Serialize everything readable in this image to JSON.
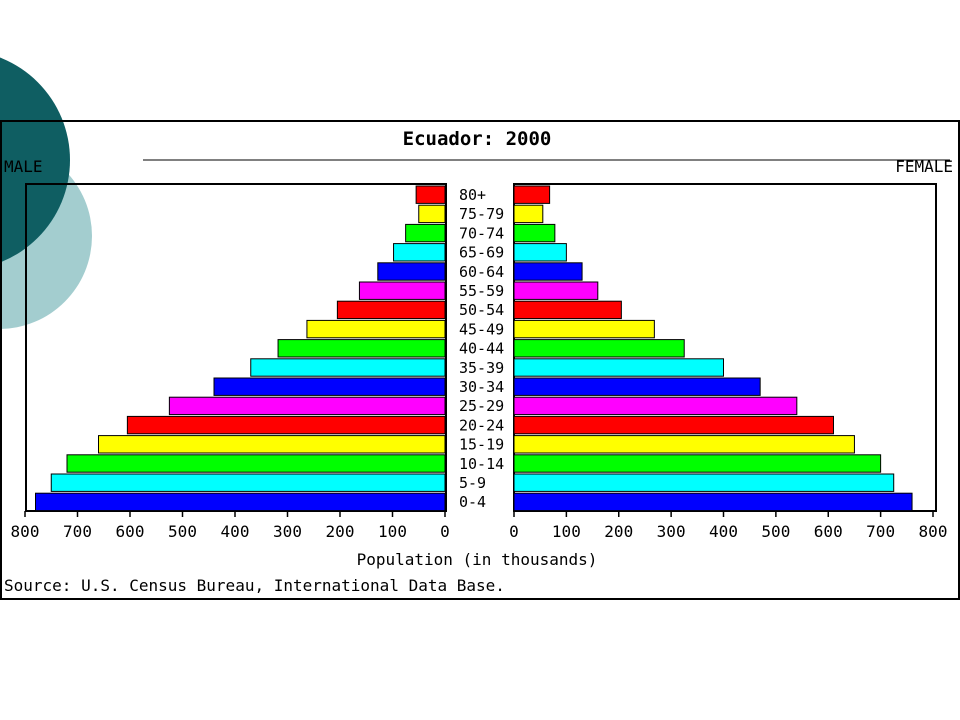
{
  "chart_data": {
    "type": "bar",
    "title": "Ecuador: 2000",
    "left_label": "MALE",
    "right_label": "FEMALE",
    "xlabel": "Population (in thousands)",
    "source": "Source: U.S. Census Bureau, International Data Base.",
    "xlim": [
      0,
      800
    ],
    "x_ticks": [
      "800",
      "700",
      "600",
      "500",
      "400",
      "300",
      "200",
      "100",
      "0"
    ],
    "x_ticks_right": [
      "0",
      "100",
      "200",
      "300",
      "400",
      "500",
      "600",
      "700",
      "800"
    ],
    "categories": [
      "80+",
      "75-79",
      "70-74",
      "65-69",
      "60-64",
      "55-59",
      "50-54",
      "45-49",
      "40-44",
      "35-39",
      "30-34",
      "25-29",
      "20-24",
      "15-19",
      "10-14",
      "5-9",
      "0-4"
    ],
    "series": [
      {
        "name": "MALE",
        "values": [
          55,
          50,
          75,
          98,
          128,
          163,
          205,
          263,
          318,
          370,
          440,
          525,
          605,
          660,
          720,
          750,
          780
        ]
      },
      {
        "name": "FEMALE",
        "values": [
          68,
          55,
          78,
          100,
          130,
          160,
          205,
          268,
          325,
          400,
          470,
          540,
          610,
          650,
          700,
          725,
          760
        ]
      }
    ],
    "colors": [
      "#ff0000",
      "#ffff00",
      "#00ff00",
      "#00ffff",
      "#0000ff",
      "#ff00ff",
      "#ff0000",
      "#ffff00",
      "#00ff00",
      "#00ffff",
      "#0000ff",
      "#ff00ff",
      "#ff0000",
      "#ffff00",
      "#00ff00",
      "#00ffff",
      "#0000ff"
    ],
    "grid": false
  },
  "slide": {
    "circle_dark": "#0f5e62",
    "circle_light": "#a3cdcf"
  }
}
